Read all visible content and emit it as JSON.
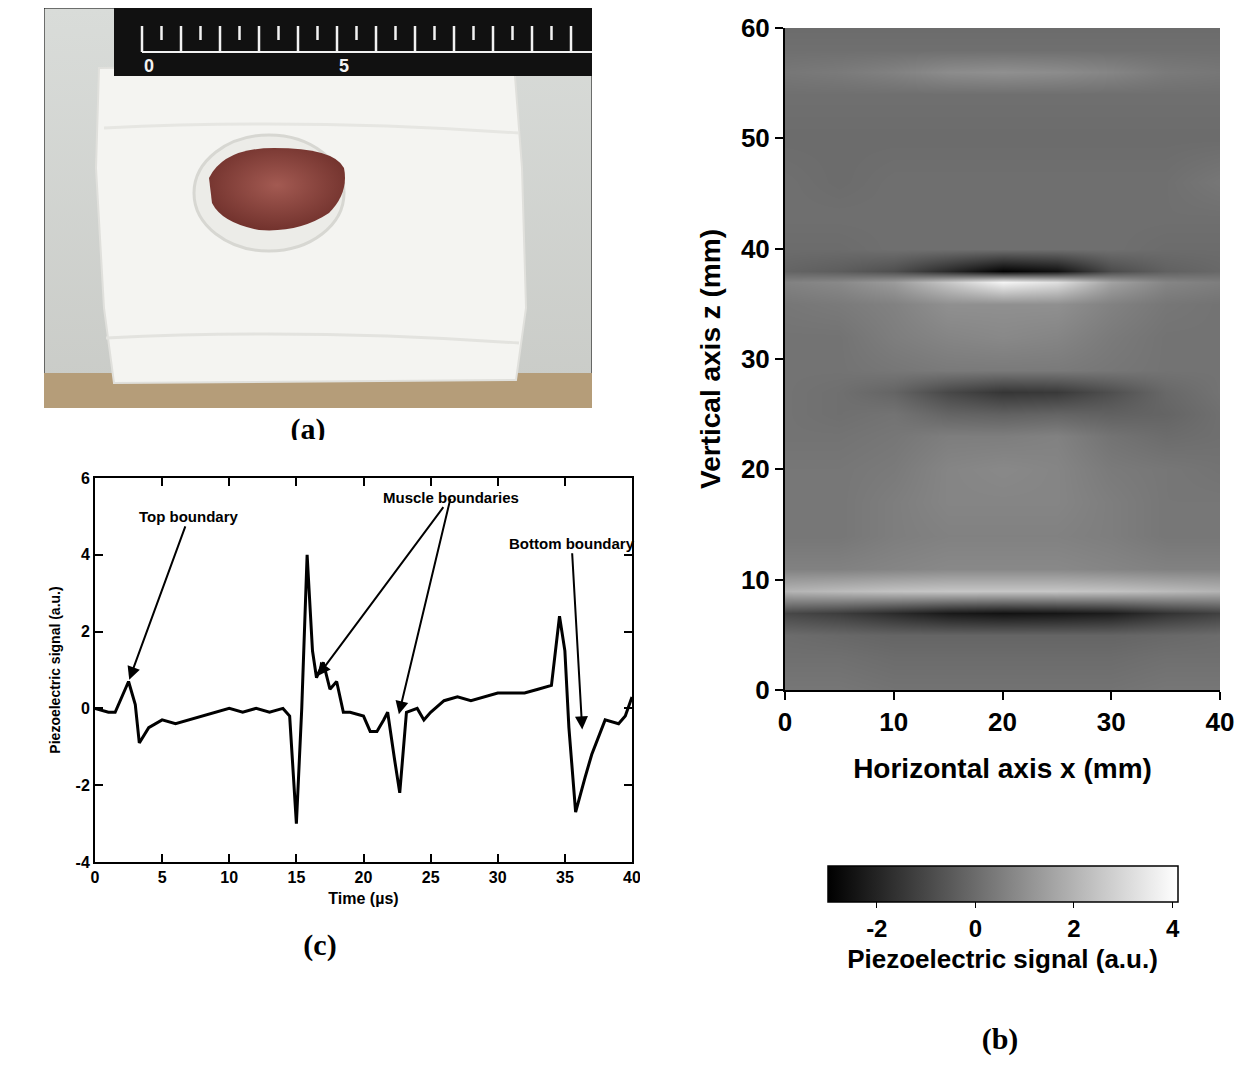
{
  "chart_data": [
    {
      "type": "image",
      "label": "(a)",
      "ruler_labels": [
        0,
        5
      ]
    },
    {
      "type": "heatmap",
      "label": "(b)",
      "x_label": "Horizontal axis x (mm)",
      "y_label": "Vertical axis z (mm)",
      "xlim": [
        0,
        40
      ],
      "xticks": [
        0,
        10,
        20,
        30,
        40
      ],
      "ylim": [
        0,
        60
      ],
      "yticks": [
        0,
        10,
        20,
        30,
        40,
        50,
        60
      ],
      "x": [
        0,
        5,
        10,
        15,
        20,
        25,
        30,
        35,
        40
      ],
      "y": [
        0,
        3,
        5,
        7,
        9,
        11,
        14,
        17,
        20,
        23,
        25,
        27,
        29,
        32,
        35,
        37,
        38,
        40,
        43,
        46,
        50,
        54,
        56,
        58,
        60
      ],
      "cells": [
        [
          0.3,
          0.3,
          0.2,
          0.2,
          0.2,
          0.2,
          0.2,
          0.3,
          0.3
        ],
        [
          0.1,
          0.1,
          0,
          0,
          0,
          0,
          0,
          0.1,
          0.1
        ],
        [
          0,
          -0.1,
          -0.2,
          -0.2,
          -0.2,
          -0.2,
          -0.2,
          -0.1,
          0
        ],
        [
          -1.0,
          -1.3,
          -1.8,
          -2.3,
          -2.5,
          -2.4,
          -2.2,
          -1.6,
          -1.2
        ],
        [
          2.0,
          2.2,
          2.4,
          2.5,
          2.5,
          2.5,
          2.4,
          2.2,
          2.0
        ],
        [
          0.6,
          0.6,
          0.7,
          0.8,
          0.8,
          0.8,
          0.7,
          0.6,
          0.6
        ],
        [
          0.3,
          0.3,
          0.5,
          0.6,
          0.6,
          0.6,
          0.5,
          0.3,
          0.3
        ],
        [
          0.3,
          0.3,
          0.5,
          0.7,
          0.7,
          0.7,
          0.5,
          0.3,
          0.3
        ],
        [
          0.3,
          0.3,
          0.4,
          0.7,
          0.8,
          0.7,
          0.4,
          0.3,
          0.2
        ],
        [
          0.2,
          0.2,
          0.3,
          0.5,
          0.5,
          0.6,
          0.2,
          0,
          0.1
        ],
        [
          0.2,
          0.1,
          0.2,
          -0.2,
          -0.3,
          -0.2,
          -0.3,
          -0.2,
          0.1
        ],
        [
          0.2,
          0.1,
          -0.2,
          -1.0,
          -1.5,
          -1.4,
          -0.8,
          -0.1,
          0.2
        ],
        [
          0.2,
          0.2,
          0.3,
          0.4,
          0.4,
          0.4,
          0.3,
          0.2,
          0.2
        ],
        [
          0.2,
          0.2,
          0.5,
          0.7,
          0.8,
          0.7,
          0.4,
          0.2,
          0.2
        ],
        [
          0.3,
          0.4,
          0.6,
          1.0,
          1.0,
          1.0,
          0.6,
          0.3,
          0.2
        ],
        [
          0.6,
          0.8,
          1.3,
          2.5,
          3.8,
          3.2,
          1.5,
          0.7,
          0.5
        ],
        [
          -0.2,
          -0.4,
          -0.8,
          -1.8,
          -2.9,
          -2.5,
          -0.9,
          -0.3,
          -0.1
        ],
        [
          0,
          0,
          0.1,
          0.1,
          0.1,
          0.1,
          0.1,
          0,
          0
        ],
        [
          0.1,
          0.1,
          0.1,
          0.1,
          0.1,
          0.1,
          0.1,
          0.1,
          0.1
        ],
        [
          0.1,
          0,
          0.1,
          0.1,
          0.1,
          0.1,
          0.1,
          0.1,
          0.3
        ],
        [
          0,
          0,
          0,
          0,
          0,
          0,
          0,
          0,
          0
        ],
        [
          0.1,
          0.1,
          0.1,
          0.1,
          0.1,
          0.1,
          0.1,
          0.1,
          0.1
        ],
        [
          0.3,
          0.4,
          0.6,
          0.9,
          1.0,
          0.9,
          0.7,
          0.4,
          0.3
        ],
        [
          0.1,
          0.1,
          0.1,
          0.1,
          0.1,
          0.1,
          0.1,
          0.1,
          0.1
        ],
        [
          0,
          0,
          0,
          0,
          0,
          0,
          0,
          0,
          0
        ]
      ],
      "colorbar": {
        "title": "Piezoelectric signal (a.u.)",
        "range": [
          -3,
          4.1
        ],
        "ticks": [
          -2,
          0,
          2,
          4
        ]
      }
    },
    {
      "type": "line",
      "label": "(c)",
      "x_label": "Time (µs)",
      "y_label": "Piezoelectric signal (a.u.)",
      "xlim": [
        0,
        40
      ],
      "xticks": [
        0,
        5,
        10,
        15,
        20,
        25,
        30,
        35,
        40
      ],
      "ylim": [
        -4,
        6
      ],
      "yticks": [
        -4,
        -2,
        0,
        2,
        4,
        6
      ],
      "color": "#000000",
      "x": [
        0,
        1,
        1.5,
        2,
        2.5,
        3,
        3.3,
        4,
        5,
        6,
        7,
        8,
        9,
        10,
        11,
        12,
        13,
        14,
        14.5,
        15,
        15.4,
        15.8,
        16.2,
        16.5,
        17,
        17.5,
        18,
        18.5,
        19,
        20,
        20.5,
        21,
        21.5,
        21.8,
        22.3,
        22.7,
        23.2,
        24,
        24.5,
        25,
        26,
        27,
        28,
        29,
        30,
        31,
        32,
        33,
        34,
        34.6,
        35,
        35.3,
        35.8,
        36.5,
        37,
        38,
        39,
        39.5,
        40
      ],
      "values": [
        0,
        -0.1,
        -0.1,
        0.3,
        0.7,
        0.1,
        -0.9,
        -0.5,
        -0.3,
        -0.4,
        -0.3,
        -0.2,
        -0.1,
        0,
        -0.1,
        0,
        -0.1,
        0,
        -0.2,
        -3.0,
        0,
        4.0,
        1.5,
        0.8,
        1.2,
        0.5,
        0.7,
        -0.1,
        -0.1,
        -0.2,
        -0.6,
        -0.6,
        -0.3,
        -0.1,
        -1.3,
        -2.2,
        -0.1,
        0,
        -0.3,
        -0.1,
        0.2,
        0.3,
        0.2,
        0.3,
        0.4,
        0.4,
        0.4,
        0.5,
        0.6,
        2.4,
        1.5,
        -0.5,
        -2.7,
        -1.8,
        -1.2,
        -0.3,
        -0.4,
        -0.2,
        0.3
      ],
      "annotations": [
        {
          "text": "Top boundary",
          "points": [
            [
              2.5,
              0.7
            ]
          ]
        },
        {
          "text": "Muscle boundaries",
          "points": [
            [
              16.5,
              0.8
            ],
            [
              22.6,
              -0.2
            ]
          ]
        },
        {
          "text": "Bottom boundary",
          "points": [
            [
              36.3,
              -0.6
            ]
          ]
        }
      ]
    }
  ]
}
